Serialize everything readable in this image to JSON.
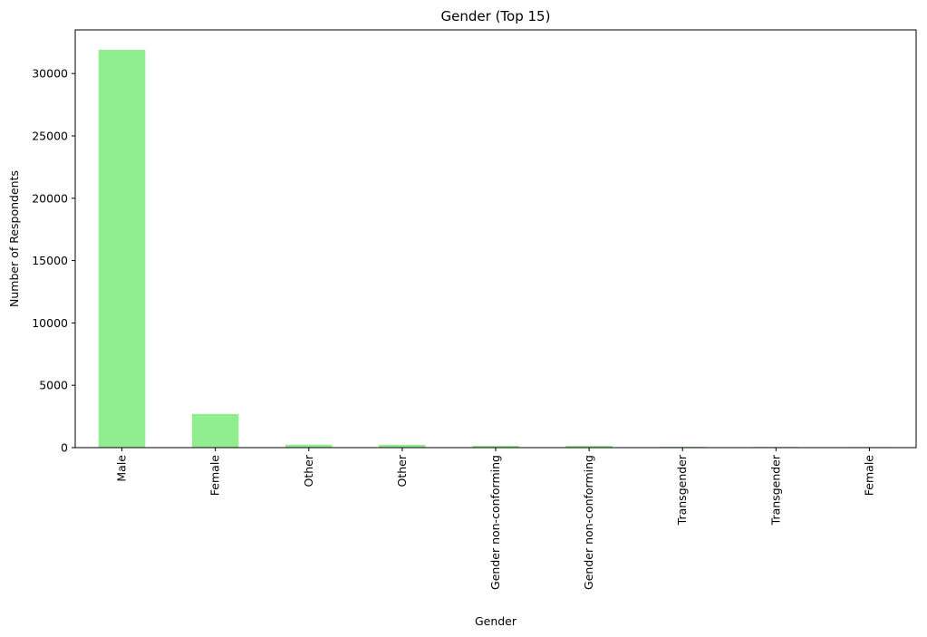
{
  "chart_data": {
    "type": "bar",
    "title": "Gender (Top 15)",
    "xlabel": "Gender",
    "ylabel": "Number of Respondents",
    "categories": [
      "Male",
      "Female",
      "Other",
      "Other",
      "Gender non-conforming",
      "Gender non-conforming",
      "Transgender",
      "Transgender",
      "Female"
    ],
    "values": [
      31900,
      2700,
      230,
      220,
      150,
      140,
      60,
      55,
      50
    ],
    "ylim": [
      0,
      33500
    ],
    "yticks": [
      0,
      5000,
      10000,
      15000,
      20000,
      25000,
      30000
    ],
    "grid": false,
    "legend": "none",
    "bar_color": "#90ee90",
    "rotate_xticks": 90
  }
}
